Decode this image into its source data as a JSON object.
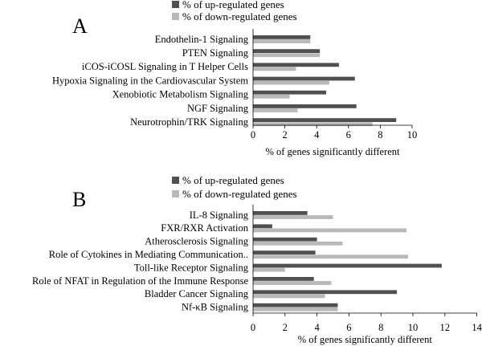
{
  "chart_data": [
    {
      "type": "bar",
      "orientation": "horizontal",
      "panel": "A",
      "legend": [
        "% of up-regulated genes",
        "% of down-regulated genes"
      ],
      "legend_position": "top",
      "categories": [
        "Endothelin-1 Signaling",
        "PTEN Signaling",
        "iCOS-iCOSL Signaling in T Helper Cells",
        "Hypoxia Signaling in the Cardiovascular System",
        "Xenobiotic Metabolism Signaling",
        "NGF Signaling",
        "Neurotrophin/TRK Signaling"
      ],
      "series": [
        {
          "name": "% of up-regulated genes",
          "color": "#505050",
          "values": [
            3.6,
            4.2,
            5.4,
            6.4,
            4.6,
            6.5,
            9.0
          ]
        },
        {
          "name": "% of down-regulated genes",
          "color": "#b9b9b9",
          "values": [
            3.6,
            4.2,
            2.7,
            4.8,
            2.3,
            2.8,
            7.5
          ]
        }
      ],
      "xlim": [
        0,
        10
      ],
      "xticks": [
        0,
        2,
        4,
        6,
        8,
        10
      ],
      "xlabel": "% of genes significantly different",
      "grid": false
    },
    {
      "type": "bar",
      "orientation": "horizontal",
      "panel": "B",
      "legend": [
        "% of up-regulated genes",
        "% of down-regulated genes"
      ],
      "legend_position": "top",
      "categories": [
        "IL-8 Signaling",
        "FXR/RXR Activation",
        "Atherosclerosis Signaling",
        "Role of Cytokines in Mediating Communication..",
        "Toll-like Receptor Signaling",
        "Role of NFAT in Regulation of the Immune Response",
        "Bladder Cancer Signaling",
        "Nf-κB Signaling"
      ],
      "series": [
        {
          "name": "% of up-regulated genes",
          "color": "#505050",
          "values": [
            3.4,
            1.2,
            4.0,
            3.9,
            11.8,
            3.8,
            9.0,
            5.3
          ]
        },
        {
          "name": "% of down-regulated genes",
          "color": "#b9b9b9",
          "values": [
            5.0,
            9.6,
            5.6,
            9.7,
            2.0,
            4.9,
            4.5,
            5.3
          ]
        }
      ],
      "xlim": [
        0,
        14
      ],
      "xticks": [
        0,
        2,
        4,
        6,
        8,
        10,
        12,
        14
      ],
      "xlabel": "% of genes significantly different",
      "grid": false
    }
  ]
}
